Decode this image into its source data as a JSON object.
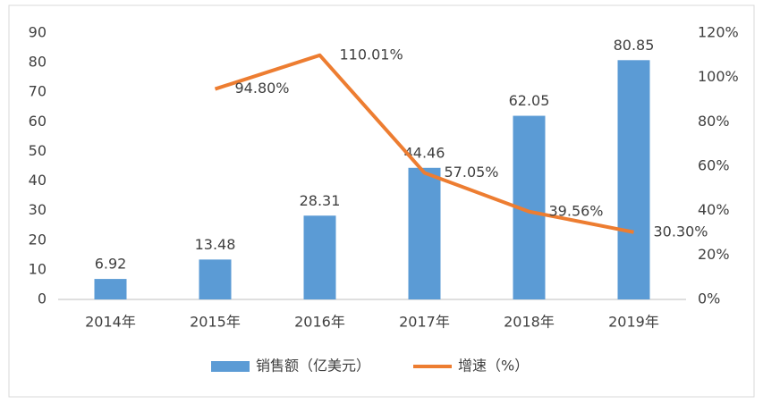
{
  "chart_data": {
    "type": "bar",
    "categories": [
      "2014年",
      "2015年",
      "2016年",
      "2017年",
      "2018年",
      "2019年"
    ],
    "series": [
      {
        "name": "销售额（亿美元）",
        "color": "#5b9bd5",
        "values": [
          6.92,
          13.48,
          28.31,
          44.46,
          62.05,
          80.85
        ]
      },
      {
        "name": "增速（%）",
        "type": "line",
        "axis": "y2",
        "color": "#ed7d31",
        "values": [
          null,
          94.8,
          110.01,
          57.05,
          39.56,
          30.3
        ],
        "value_labels": [
          null,
          "94.80%",
          "110.01%",
          "57.05%",
          "39.56%",
          "30.30%"
        ]
      }
    ],
    "ylim": [
      0,
      90
    ],
    "yticks": [
      0,
      10,
      20,
      30,
      40,
      50,
      60,
      70,
      80,
      90
    ],
    "y2lim": [
      0,
      120
    ],
    "y2ticks": [
      {
        "value": 0,
        "label": "0%"
      },
      {
        "value": 20,
        "label": "20%"
      },
      {
        "value": 40,
        "label": "40%"
      },
      {
        "value": 60,
        "label": "60%"
      },
      {
        "value": 80,
        "label": "80%"
      },
      {
        "value": 100,
        "label": "100%"
      },
      {
        "value": 120,
        "label": "120%"
      }
    ],
    "grid": false,
    "legend": "bottom"
  }
}
